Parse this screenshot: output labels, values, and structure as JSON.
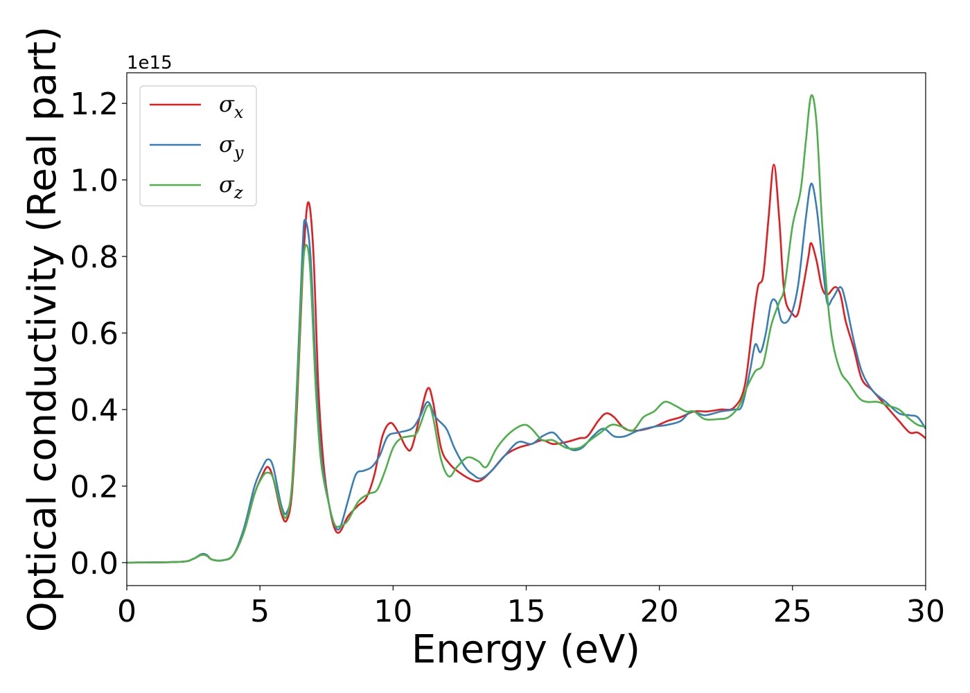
{
  "chart_data": {
    "type": "line",
    "title": "",
    "xlabel": "Energy (eV)",
    "ylabel": "Optical conductivity (Real part)",
    "y_offset_text": "1e15",
    "y_multiplier": 1000000000000000.0,
    "xlim": [
      0,
      30
    ],
    "ylim": [
      -0.06,
      1.28
    ],
    "x_ticks": [
      0,
      5,
      10,
      15,
      20,
      25,
      30
    ],
    "x_tick_labels": [
      "0",
      "5",
      "10",
      "15",
      "20",
      "25",
      "30"
    ],
    "y_ticks": [
      0.0,
      0.2,
      0.4,
      0.6,
      0.8,
      1.0,
      1.2
    ],
    "y_tick_labels": [
      "0.0",
      "0.2",
      "0.4",
      "0.6",
      "0.8",
      "1.0",
      "1.2"
    ],
    "grid": false,
    "legend_position": "top-left",
    "series": [
      {
        "name": "σx",
        "symbol": "σ",
        "subscript": "x",
        "color": "#e41a1c",
        "points": [
          [
            0,
            0
          ],
          [
            2,
            0.002
          ],
          [
            2.5,
            0.01
          ],
          [
            2.8,
            0.022
          ],
          [
            3.0,
            0.02
          ],
          [
            3.2,
            0.008
          ],
          [
            3.6,
            0.006
          ],
          [
            4.0,
            0.02
          ],
          [
            4.4,
            0.08
          ],
          [
            4.8,
            0.18
          ],
          [
            5.1,
            0.23
          ],
          [
            5.3,
            0.25
          ],
          [
            5.5,
            0.22
          ],
          [
            5.8,
            0.13
          ],
          [
            6.0,
            0.11
          ],
          [
            6.2,
            0.18
          ],
          [
            6.4,
            0.42
          ],
          [
            6.6,
            0.75
          ],
          [
            6.8,
            0.94
          ],
          [
            7.0,
            0.82
          ],
          [
            7.2,
            0.45
          ],
          [
            7.4,
            0.25
          ],
          [
            7.6,
            0.15
          ],
          [
            7.8,
            0.09
          ],
          [
            8.0,
            0.08
          ],
          [
            8.3,
            0.12
          ],
          [
            8.7,
            0.15
          ],
          [
            9.0,
            0.17
          ],
          [
            9.3,
            0.23
          ],
          [
            9.6,
            0.33
          ],
          [
            9.9,
            0.365
          ],
          [
            10.2,
            0.34
          ],
          [
            10.5,
            0.3
          ],
          [
            10.7,
            0.3
          ],
          [
            11.0,
            0.38
          ],
          [
            11.3,
            0.455
          ],
          [
            11.5,
            0.42
          ],
          [
            11.8,
            0.3
          ],
          [
            12.1,
            0.26
          ],
          [
            12.5,
            0.235
          ],
          [
            13.0,
            0.215
          ],
          [
            13.3,
            0.215
          ],
          [
            13.7,
            0.24
          ],
          [
            14.2,
            0.28
          ],
          [
            14.7,
            0.3
          ],
          [
            15.2,
            0.31
          ],
          [
            15.6,
            0.32
          ],
          [
            16.0,
            0.31
          ],
          [
            16.5,
            0.315
          ],
          [
            17.0,
            0.325
          ],
          [
            17.3,
            0.33
          ],
          [
            17.7,
            0.37
          ],
          [
            18.0,
            0.39
          ],
          [
            18.3,
            0.38
          ],
          [
            18.7,
            0.35
          ],
          [
            19.2,
            0.345
          ],
          [
            19.8,
            0.355
          ],
          [
            20.3,
            0.37
          ],
          [
            20.8,
            0.38
          ],
          [
            21.3,
            0.395
          ],
          [
            21.8,
            0.395
          ],
          [
            22.3,
            0.4
          ],
          [
            22.8,
            0.405
          ],
          [
            23.2,
            0.46
          ],
          [
            23.5,
            0.62
          ],
          [
            23.7,
            0.72
          ],
          [
            23.9,
            0.75
          ],
          [
            24.1,
            0.9
          ],
          [
            24.3,
            1.04
          ],
          [
            24.5,
            0.9
          ],
          [
            24.7,
            0.7
          ],
          [
            25.0,
            0.65
          ],
          [
            25.2,
            0.65
          ],
          [
            25.4,
            0.72
          ],
          [
            25.6,
            0.8
          ],
          [
            25.7,
            0.835
          ],
          [
            25.9,
            0.79
          ],
          [
            26.1,
            0.72
          ],
          [
            26.3,
            0.7
          ],
          [
            26.6,
            0.72
          ],
          [
            26.8,
            0.7
          ],
          [
            27.0,
            0.63
          ],
          [
            27.3,
            0.56
          ],
          [
            27.6,
            0.48
          ],
          [
            28.0,
            0.45
          ],
          [
            28.5,
            0.41
          ],
          [
            29.0,
            0.37
          ],
          [
            29.4,
            0.34
          ],
          [
            29.7,
            0.34
          ],
          [
            30,
            0.325
          ]
        ]
      },
      {
        "name": "σy",
        "symbol": "σ",
        "subscript": "y",
        "color": "#377eb8",
        "points": [
          [
            0,
            0
          ],
          [
            2,
            0.002
          ],
          [
            2.5,
            0.01
          ],
          [
            2.8,
            0.022
          ],
          [
            3.0,
            0.02
          ],
          [
            3.2,
            0.008
          ],
          [
            3.6,
            0.006
          ],
          [
            4.0,
            0.02
          ],
          [
            4.4,
            0.09
          ],
          [
            4.8,
            0.2
          ],
          [
            5.1,
            0.25
          ],
          [
            5.3,
            0.27
          ],
          [
            5.5,
            0.25
          ],
          [
            5.8,
            0.15
          ],
          [
            6.0,
            0.13
          ],
          [
            6.2,
            0.2
          ],
          [
            6.4,
            0.48
          ],
          [
            6.6,
            0.82
          ],
          [
            6.7,
            0.895
          ],
          [
            6.9,
            0.8
          ],
          [
            7.1,
            0.5
          ],
          [
            7.3,
            0.28
          ],
          [
            7.6,
            0.15
          ],
          [
            7.8,
            0.1
          ],
          [
            8.0,
            0.09
          ],
          [
            8.3,
            0.16
          ],
          [
            8.6,
            0.23
          ],
          [
            8.9,
            0.24
          ],
          [
            9.2,
            0.25
          ],
          [
            9.5,
            0.28
          ],
          [
            9.8,
            0.33
          ],
          [
            10.2,
            0.34
          ],
          [
            10.7,
            0.35
          ],
          [
            11.0,
            0.38
          ],
          [
            11.3,
            0.42
          ],
          [
            11.6,
            0.38
          ],
          [
            12.0,
            0.35
          ],
          [
            12.3,
            0.3
          ],
          [
            12.7,
            0.25
          ],
          [
            13.0,
            0.23
          ],
          [
            13.3,
            0.22
          ],
          [
            13.7,
            0.24
          ],
          [
            14.2,
            0.28
          ],
          [
            14.7,
            0.315
          ],
          [
            15.2,
            0.31
          ],
          [
            15.6,
            0.33
          ],
          [
            16.0,
            0.34
          ],
          [
            16.3,
            0.32
          ],
          [
            16.7,
            0.295
          ],
          [
            17.1,
            0.3
          ],
          [
            17.5,
            0.33
          ],
          [
            17.9,
            0.35
          ],
          [
            18.3,
            0.33
          ],
          [
            18.7,
            0.33
          ],
          [
            19.2,
            0.345
          ],
          [
            19.8,
            0.355
          ],
          [
            20.3,
            0.36
          ],
          [
            20.8,
            0.37
          ],
          [
            21.2,
            0.395
          ],
          [
            21.7,
            0.385
          ],
          [
            22.3,
            0.395
          ],
          [
            22.8,
            0.4
          ],
          [
            23.1,
            0.41
          ],
          [
            23.4,
            0.5
          ],
          [
            23.6,
            0.57
          ],
          [
            23.8,
            0.55
          ],
          [
            24.0,
            0.6
          ],
          [
            24.2,
            0.68
          ],
          [
            24.4,
            0.68
          ],
          [
            24.6,
            0.63
          ],
          [
            24.9,
            0.64
          ],
          [
            25.2,
            0.72
          ],
          [
            25.5,
            0.9
          ],
          [
            25.7,
            0.99
          ],
          [
            25.9,
            0.93
          ],
          [
            26.1,
            0.8
          ],
          [
            26.3,
            0.68
          ],
          [
            26.5,
            0.69
          ],
          [
            26.8,
            0.72
          ],
          [
            27.0,
            0.68
          ],
          [
            27.3,
            0.58
          ],
          [
            27.6,
            0.5
          ],
          [
            28.0,
            0.45
          ],
          [
            28.5,
            0.42
          ],
          [
            29.0,
            0.39
          ],
          [
            29.4,
            0.385
          ],
          [
            29.7,
            0.38
          ],
          [
            30,
            0.35
          ]
        ]
      },
      {
        "name": "σz",
        "symbol": "σ",
        "subscript": "z",
        "color": "#4daf4a",
        "points": [
          [
            0,
            0
          ],
          [
            2,
            0.002
          ],
          [
            2.5,
            0.01
          ],
          [
            2.8,
            0.02
          ],
          [
            3.0,
            0.018
          ],
          [
            3.2,
            0.008
          ],
          [
            3.6,
            0.006
          ],
          [
            4.0,
            0.02
          ],
          [
            4.4,
            0.08
          ],
          [
            4.8,
            0.18
          ],
          [
            5.1,
            0.225
          ],
          [
            5.3,
            0.235
          ],
          [
            5.5,
            0.22
          ],
          [
            5.8,
            0.14
          ],
          [
            6.0,
            0.12
          ],
          [
            6.2,
            0.2
          ],
          [
            6.4,
            0.45
          ],
          [
            6.6,
            0.76
          ],
          [
            6.75,
            0.83
          ],
          [
            6.9,
            0.75
          ],
          [
            7.1,
            0.45
          ],
          [
            7.3,
            0.26
          ],
          [
            7.6,
            0.15
          ],
          [
            7.8,
            0.1
          ],
          [
            8.0,
            0.095
          ],
          [
            8.3,
            0.11
          ],
          [
            8.7,
            0.16
          ],
          [
            9.1,
            0.18
          ],
          [
            9.4,
            0.19
          ],
          [
            9.7,
            0.24
          ],
          [
            10.0,
            0.3
          ],
          [
            10.3,
            0.325
          ],
          [
            10.6,
            0.33
          ],
          [
            10.9,
            0.34
          ],
          [
            11.3,
            0.41
          ],
          [
            11.5,
            0.38
          ],
          [
            11.8,
            0.27
          ],
          [
            12.1,
            0.225
          ],
          [
            12.4,
            0.25
          ],
          [
            12.8,
            0.275
          ],
          [
            13.2,
            0.265
          ],
          [
            13.5,
            0.25
          ],
          [
            13.9,
            0.3
          ],
          [
            14.4,
            0.34
          ],
          [
            14.9,
            0.36
          ],
          [
            15.2,
            0.35
          ],
          [
            15.6,
            0.32
          ],
          [
            16.0,
            0.32
          ],
          [
            16.5,
            0.3
          ],
          [
            17.0,
            0.3
          ],
          [
            17.4,
            0.32
          ],
          [
            17.8,
            0.34
          ],
          [
            18.2,
            0.36
          ],
          [
            18.6,
            0.355
          ],
          [
            19.0,
            0.345
          ],
          [
            19.4,
            0.38
          ],
          [
            19.8,
            0.395
          ],
          [
            20.2,
            0.42
          ],
          [
            20.6,
            0.41
          ],
          [
            21.0,
            0.395
          ],
          [
            21.3,
            0.395
          ],
          [
            21.7,
            0.375
          ],
          [
            22.2,
            0.375
          ],
          [
            22.6,
            0.38
          ],
          [
            23.0,
            0.41
          ],
          [
            23.3,
            0.46
          ],
          [
            23.6,
            0.5
          ],
          [
            23.9,
            0.52
          ],
          [
            24.2,
            0.62
          ],
          [
            24.5,
            0.68
          ],
          [
            24.7,
            0.72
          ],
          [
            25.0,
            0.88
          ],
          [
            25.3,
            0.97
          ],
          [
            25.5,
            1.1
          ],
          [
            25.7,
            1.22
          ],
          [
            25.9,
            1.15
          ],
          [
            26.1,
            0.9
          ],
          [
            26.3,
            0.7
          ],
          [
            26.5,
            0.58
          ],
          [
            26.8,
            0.5
          ],
          [
            27.1,
            0.47
          ],
          [
            27.5,
            0.43
          ],
          [
            27.8,
            0.42
          ],
          [
            28.2,
            0.42
          ],
          [
            28.6,
            0.41
          ],
          [
            29.0,
            0.4
          ],
          [
            29.4,
            0.375
          ],
          [
            29.7,
            0.36
          ],
          [
            30,
            0.355
          ]
        ]
      }
    ]
  }
}
